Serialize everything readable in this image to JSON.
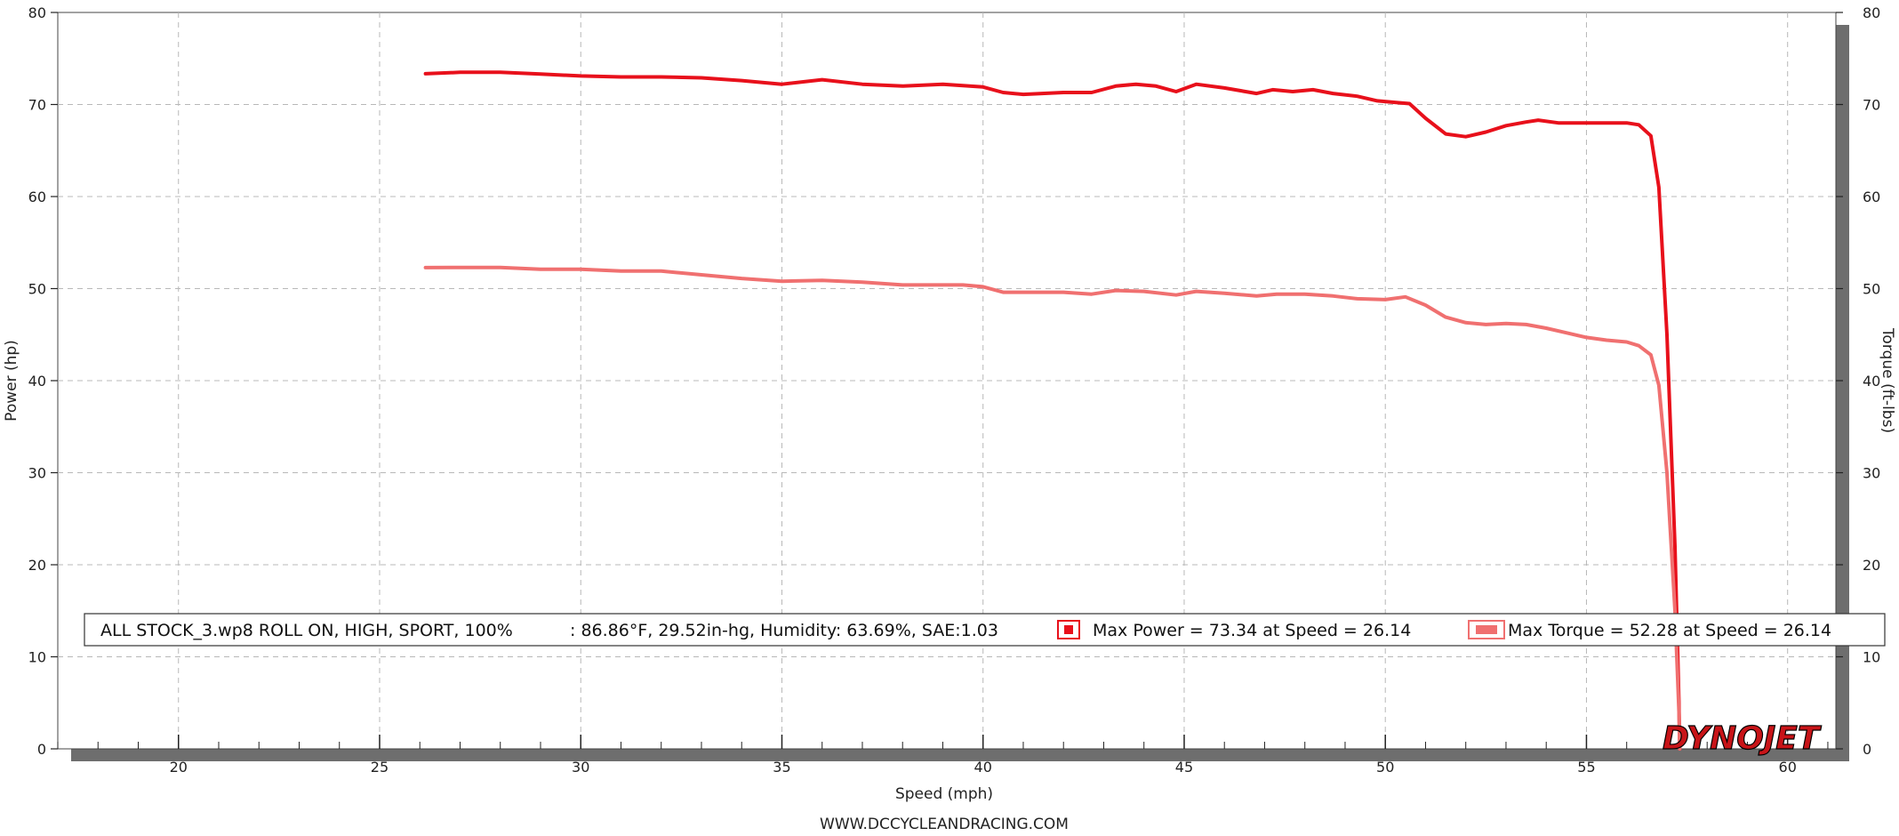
{
  "colors": {
    "power": "#e8101b",
    "torque": "#f07070",
    "grid": "#b8b8b8",
    "frame_shadow": "#6e6e6e"
  },
  "legend": {
    "run_info": "ALL STOCK_3.wp8 ROLL ON, HIGH, SPORT, 100%",
    "conditions": ": 86.86°F, 29.52in-hg, Humidity: 63.69%, SAE:1.03",
    "power_entry": "Max Power = 73.34 at Speed = 26.14",
    "torque_entry": "Max Torque = 52.28 at Speed = 26.14"
  },
  "footer": {
    "website": "WWW.DCCYCLEANDRACING.COM"
  },
  "logo": {
    "text": "DYNOJET",
    "icon": "dynojet-logo"
  },
  "chart_data": {
    "type": "line",
    "xlabel": "Speed (mph)",
    "ylabel": "Power (hp)",
    "y2label": "Torque (ft-lbs)",
    "xlim": [
      17,
      61.2
    ],
    "ylim": [
      0,
      80
    ],
    "y2lim": [
      0,
      80
    ],
    "xticks": [
      20,
      25,
      30,
      35,
      40,
      45,
      50,
      55,
      60
    ],
    "yticks": [
      0,
      10,
      20,
      30,
      40,
      50,
      60,
      70,
      80
    ],
    "grid": true,
    "legend_position": "bottom",
    "series": [
      {
        "name": "Max Power",
        "axis": "left",
        "color": "#e8101b",
        "points": [
          [
            26.14,
            73.34
          ],
          [
            27,
            73.5
          ],
          [
            28,
            73.5
          ],
          [
            29,
            73.3
          ],
          [
            30,
            73.1
          ],
          [
            31,
            73.0
          ],
          [
            32,
            73.0
          ],
          [
            33,
            72.9
          ],
          [
            34,
            72.6
          ],
          [
            35,
            72.2
          ],
          [
            36,
            72.7
          ],
          [
            37,
            72.2
          ],
          [
            38,
            72.0
          ],
          [
            39,
            72.2
          ],
          [
            40,
            71.9
          ],
          [
            40.5,
            71.3
          ],
          [
            41,
            71.1
          ],
          [
            42,
            71.3
          ],
          [
            42.7,
            71.3
          ],
          [
            43.3,
            72.0
          ],
          [
            43.8,
            72.2
          ],
          [
            44.3,
            72.0
          ],
          [
            44.8,
            71.4
          ],
          [
            45.3,
            72.2
          ],
          [
            46,
            71.8
          ],
          [
            46.8,
            71.2
          ],
          [
            47.2,
            71.6
          ],
          [
            47.7,
            71.4
          ],
          [
            48.2,
            71.6
          ],
          [
            48.7,
            71.2
          ],
          [
            49.3,
            70.9
          ],
          [
            49.8,
            70.4
          ],
          [
            50.3,
            70.2
          ],
          [
            50.6,
            70.1
          ],
          [
            51,
            68.5
          ],
          [
            51.5,
            66.8
          ],
          [
            52,
            66.5
          ],
          [
            52.5,
            67.0
          ],
          [
            53,
            67.7
          ],
          [
            53.5,
            68.1
          ],
          [
            53.8,
            68.3
          ],
          [
            54.3,
            68.0
          ],
          [
            55,
            68.0
          ],
          [
            56,
            68.0
          ],
          [
            56.3,
            67.8
          ],
          [
            56.6,
            66.6
          ],
          [
            56.8,
            61.0
          ],
          [
            57.0,
            45.0
          ],
          [
            57.2,
            22.0
          ],
          [
            57.3,
            5.0
          ],
          [
            57.32,
            0.0
          ]
        ]
      },
      {
        "name": "Max Torque",
        "axis": "right",
        "color": "#f07070",
        "points": [
          [
            26.14,
            52.28
          ],
          [
            27,
            52.3
          ],
          [
            28,
            52.3
          ],
          [
            29,
            52.1
          ],
          [
            30,
            52.1
          ],
          [
            31,
            51.9
          ],
          [
            32,
            51.9
          ],
          [
            33,
            51.5
          ],
          [
            34,
            51.1
          ],
          [
            35,
            50.8
          ],
          [
            36,
            50.9
          ],
          [
            37,
            50.7
          ],
          [
            38,
            50.4
          ],
          [
            39,
            50.4
          ],
          [
            39.5,
            50.4
          ],
          [
            40,
            50.2
          ],
          [
            40.5,
            49.6
          ],
          [
            41,
            49.6
          ],
          [
            42,
            49.6
          ],
          [
            42.7,
            49.4
          ],
          [
            43.3,
            49.8
          ],
          [
            44,
            49.7
          ],
          [
            44.8,
            49.3
          ],
          [
            45.3,
            49.7
          ],
          [
            46,
            49.5
          ],
          [
            46.8,
            49.2
          ],
          [
            47.3,
            49.4
          ],
          [
            48,
            49.4
          ],
          [
            48.7,
            49.2
          ],
          [
            49.3,
            48.9
          ],
          [
            50,
            48.8
          ],
          [
            50.5,
            49.1
          ],
          [
            51,
            48.2
          ],
          [
            51.5,
            46.9
          ],
          [
            52,
            46.3
          ],
          [
            52.5,
            46.1
          ],
          [
            53,
            46.2
          ],
          [
            53.5,
            46.1
          ],
          [
            54,
            45.7
          ],
          [
            54.5,
            45.2
          ],
          [
            55,
            44.7
          ],
          [
            55.5,
            44.4
          ],
          [
            56,
            44.2
          ],
          [
            56.3,
            43.8
          ],
          [
            56.6,
            42.8
          ],
          [
            56.8,
            39.5
          ],
          [
            57.0,
            30.0
          ],
          [
            57.2,
            15.0
          ],
          [
            57.3,
            4.0
          ],
          [
            57.32,
            0.0
          ]
        ]
      }
    ]
  }
}
